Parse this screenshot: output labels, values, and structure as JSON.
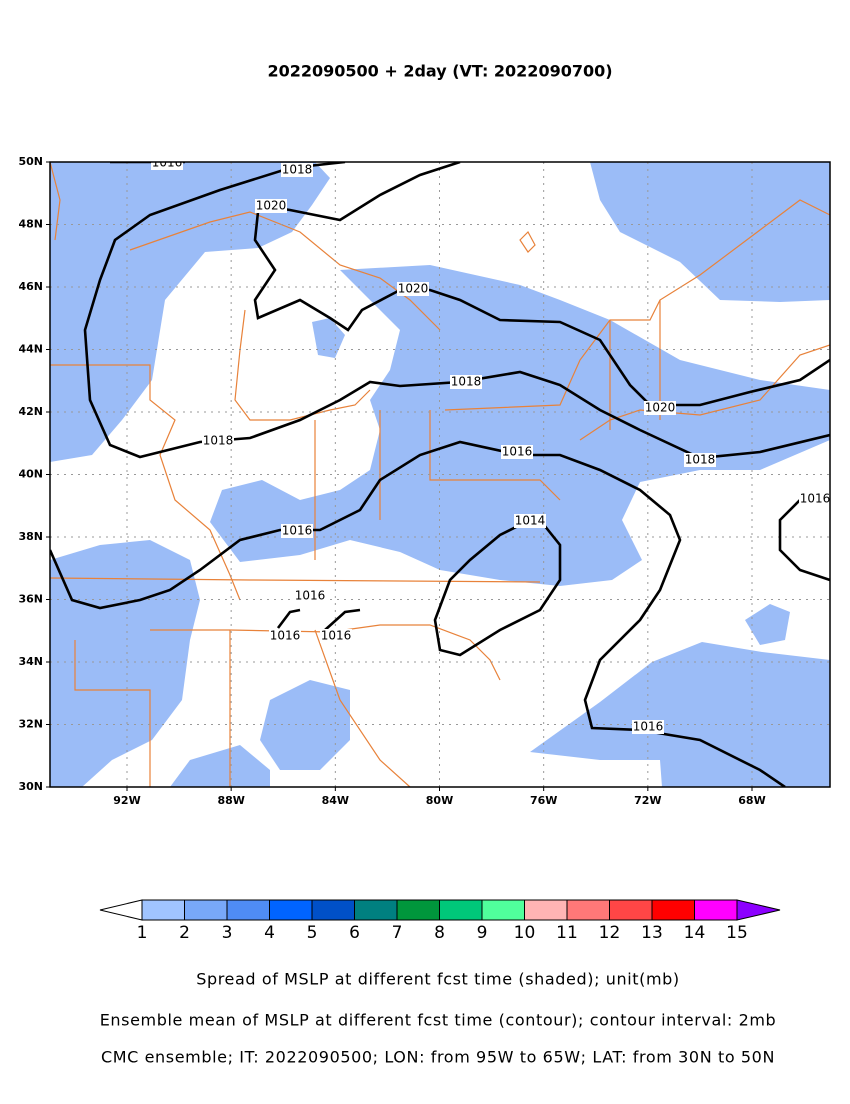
{
  "title": "2022090500 + 2day (VT: 2022090700)",
  "map": {
    "lat_ticks": [
      {
        "value": 30,
        "label": "30N"
      },
      {
        "value": 32,
        "label": "32N"
      },
      {
        "value": 34,
        "label": "34N"
      },
      {
        "value": 36,
        "label": "36N"
      },
      {
        "value": 38,
        "label": "38N"
      },
      {
        "value": 40,
        "label": "40N"
      },
      {
        "value": 42,
        "label": "42N"
      },
      {
        "value": 44,
        "label": "44N"
      },
      {
        "value": 46,
        "label": "46N"
      },
      {
        "value": 48,
        "label": "48N"
      },
      {
        "value": 50,
        "label": "50N"
      }
    ],
    "lon_ticks": [
      {
        "value": -92,
        "label": "92W"
      },
      {
        "value": -88,
        "label": "88W"
      },
      {
        "value": -84,
        "label": "84W"
      },
      {
        "value": -80,
        "label": "80W"
      },
      {
        "value": -76,
        "label": "76W"
      },
      {
        "value": -72,
        "label": "72W"
      },
      {
        "value": -68,
        "label": "68W"
      }
    ],
    "shading_color": "#9bbcf7",
    "contour_labels": [
      1016,
      1018,
      1020,
      1020,
      1018,
      1020,
      1018,
      1016,
      1018,
      1016,
      1014,
      1016,
      1016,
      1016,
      1016,
      1016
    ]
  },
  "colorbar": {
    "levels": [
      1,
      2,
      3,
      4,
      5,
      6,
      7,
      8,
      9,
      10,
      11,
      12,
      13,
      14,
      15
    ],
    "colors": [
      "#ffffff",
      "#a0c4ff",
      "#78a8f8",
      "#4f8cf5",
      "#0064ff",
      "#0050c8",
      "#008080",
      "#00963c",
      "#00c87a",
      "#50ff9c",
      "#ffb4b4",
      "#ff7878",
      "#ff4646",
      "#ff0000",
      "#ff00ff",
      "#8c00ff"
    ]
  },
  "footer": [
    "Spread of MSLP at different fcst time (shaded); unit(mb)",
    "Ensemble mean of MSLP at different fcst time (contour); contour interval: 2mb",
    "CMC ensemble; IT: 2022090500; LON: from 95W to 65W; LAT: from 30N to 50N"
  ]
}
